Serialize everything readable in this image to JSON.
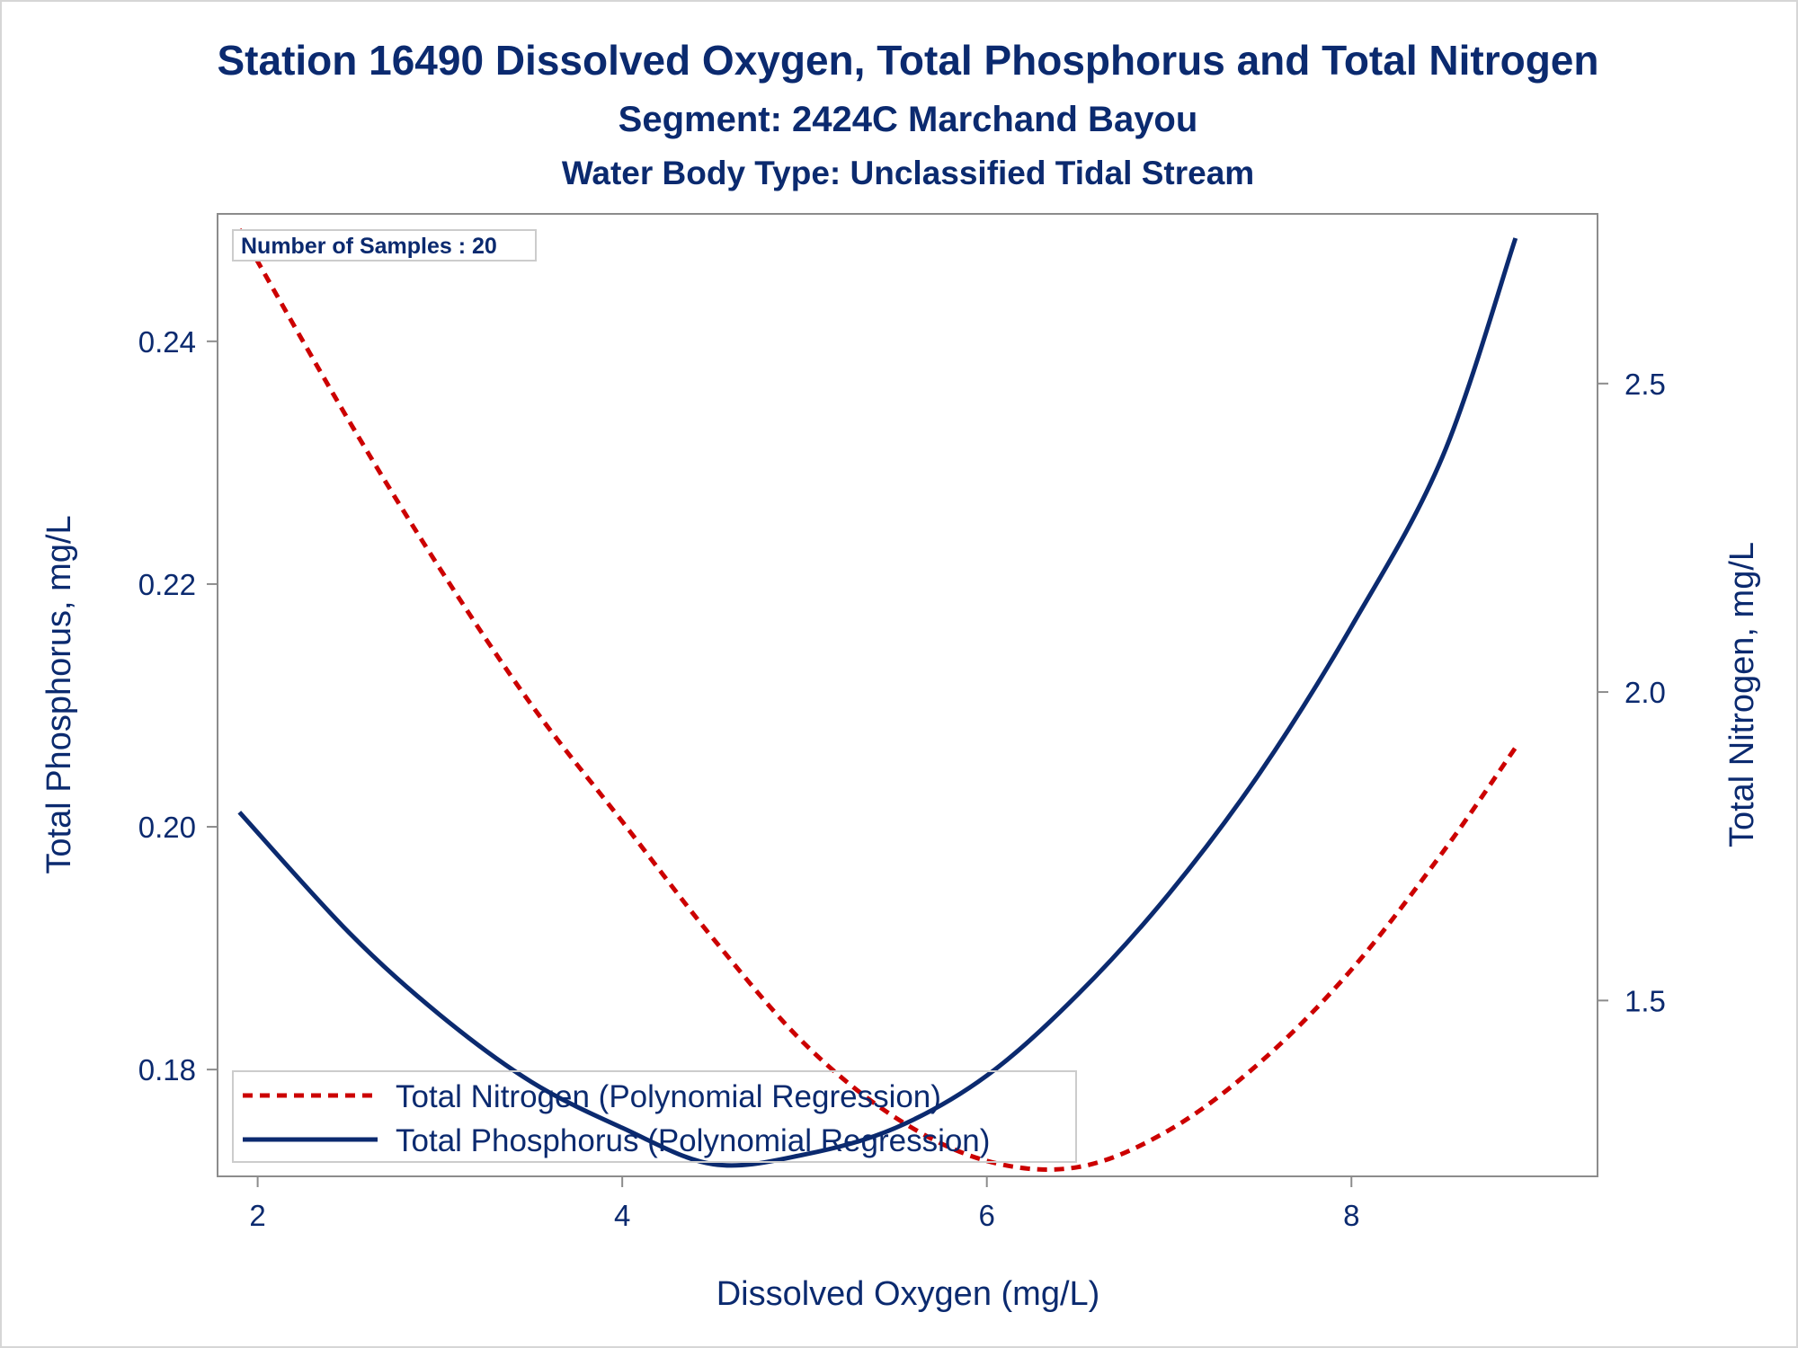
{
  "chart_data": {
    "type": "line",
    "title": "Station 16490  Dissolved Oxygen, Total Phosphorus and Total Nitrogen",
    "subtitle": "Segment: 2424C  Marchand Bayou",
    "subtitle2": "Water Body Type: Unclassified Tidal Stream",
    "xlabel": "Dissolved Oxygen (mg/L)",
    "ylabel_left": "Total Phosphorus, mg/L",
    "ylabel_right": "Total Nitrogen, mg/L",
    "xlim": [
      1.78,
      9.35
    ],
    "ylim_left": [
      0.1712,
      0.2505
    ],
    "ylim_right": [
      1.215,
      2.775
    ],
    "x_ticks": [
      "2",
      "4",
      "6",
      "8"
    ],
    "y_left_ticks": [
      "0.18",
      "0.20",
      "0.22",
      "0.24"
    ],
    "y_right_ticks": [
      "1.5",
      "2.0",
      "2.5"
    ],
    "annotation": "Number of Samples : 20",
    "legend_position": "bottom-left",
    "series": [
      {
        "name": "Total Nitrogen (Polynomial Regression)",
        "axis": "right",
        "color": "#cc0000",
        "style": "dashed",
        "x": [
          1.9,
          2.5,
          3.0,
          3.5,
          4.0,
          4.5,
          5.0,
          5.5,
          6.0,
          6.5,
          7.0,
          7.5,
          8.0,
          8.5,
          8.9
        ],
        "values": [
          2.75,
          2.44,
          2.2,
          1.98,
          1.79,
          1.6,
          1.43,
          1.31,
          1.24,
          1.23,
          1.29,
          1.4,
          1.55,
          1.74,
          1.91
        ]
      },
      {
        "name": "Total Phosphorus (Polynomial Regression)",
        "axis": "left",
        "color": "#0b2a6f",
        "style": "solid",
        "x": [
          1.9,
          2.5,
          3.0,
          3.5,
          4.0,
          4.5,
          5.0,
          5.5,
          6.0,
          6.5,
          7.0,
          7.5,
          8.0,
          8.5,
          8.9
        ],
        "values": [
          0.2012,
          0.1913,
          0.1845,
          0.179,
          0.1752,
          0.1722,
          0.173,
          0.1752,
          0.1795,
          0.1862,
          0.1945,
          0.2045,
          0.2165,
          0.2305,
          0.2485
        ]
      }
    ]
  }
}
